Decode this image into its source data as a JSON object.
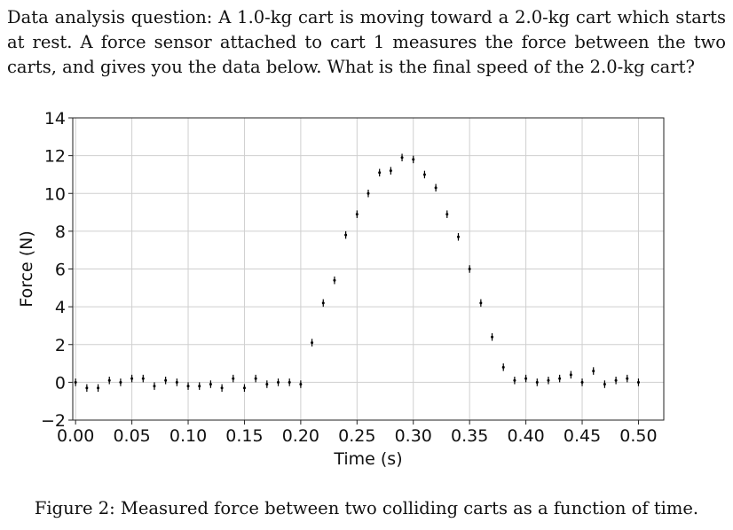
{
  "question": "Data analysis question: A 1.0-kg cart is moving toward a 2.0-kg cart which starts at rest. A force sensor attached to cart 1 measures the force between the two carts, and gives you the data below. What is the final speed of the 2.0-kg cart?",
  "caption": "Figure 2: Measured force between two colliding carts as a function of time.",
  "chart_data": {
    "type": "scatter",
    "xlabel": "Time (s)",
    "ylabel": "Force (N)",
    "xlim": [
      -0.0025,
      0.5225
    ],
    "ylim": [
      -2,
      14
    ],
    "xticks": [
      "0.00",
      "0.05",
      "0.10",
      "0.15",
      "0.20",
      "0.25",
      "0.30",
      "0.35",
      "0.40",
      "0.45",
      "0.50"
    ],
    "yticks": [
      "14",
      "12",
      "10",
      "8",
      "6",
      "4",
      "2",
      "0",
      "−2"
    ],
    "grid": true,
    "error_bar": 0.2,
    "points": [
      [
        0.0,
        0.0
      ],
      [
        0.01,
        -0.3
      ],
      [
        0.02,
        -0.3
      ],
      [
        0.03,
        0.1
      ],
      [
        0.04,
        0.0
      ],
      [
        0.05,
        0.2
      ],
      [
        0.06,
        0.2
      ],
      [
        0.07,
        -0.2
      ],
      [
        0.08,
        0.1
      ],
      [
        0.09,
        0.0
      ],
      [
        0.1,
        -0.2
      ],
      [
        0.11,
        -0.2
      ],
      [
        0.12,
        -0.1
      ],
      [
        0.13,
        -0.3
      ],
      [
        0.14,
        0.2
      ],
      [
        0.15,
        -0.3
      ],
      [
        0.16,
        0.2
      ],
      [
        0.17,
        -0.1
      ],
      [
        0.18,
        0.0
      ],
      [
        0.19,
        0.0
      ],
      [
        0.2,
        -0.1
      ],
      [
        0.21,
        2.1
      ],
      [
        0.22,
        4.2
      ],
      [
        0.23,
        5.4
      ],
      [
        0.24,
        7.8
      ],
      [
        0.25,
        8.9
      ],
      [
        0.26,
        10.0
      ],
      [
        0.27,
        11.1
      ],
      [
        0.28,
        11.2
      ],
      [
        0.29,
        11.9
      ],
      [
        0.3,
        11.8
      ],
      [
        0.31,
        11.0
      ],
      [
        0.32,
        10.3
      ],
      [
        0.33,
        8.9
      ],
      [
        0.34,
        7.7
      ],
      [
        0.35,
        6.0
      ],
      [
        0.36,
        4.2
      ],
      [
        0.37,
        2.4
      ],
      [
        0.38,
        0.8
      ],
      [
        0.39,
        0.1
      ],
      [
        0.4,
        0.2
      ],
      [
        0.41,
        0.0
      ],
      [
        0.42,
        0.1
      ],
      [
        0.43,
        0.2
      ],
      [
        0.44,
        0.4
      ],
      [
        0.45,
        0.0
      ],
      [
        0.46,
        0.6
      ],
      [
        0.47,
        -0.1
      ],
      [
        0.48,
        0.1
      ],
      [
        0.49,
        0.2
      ],
      [
        0.5,
        0.0
      ]
    ]
  }
}
